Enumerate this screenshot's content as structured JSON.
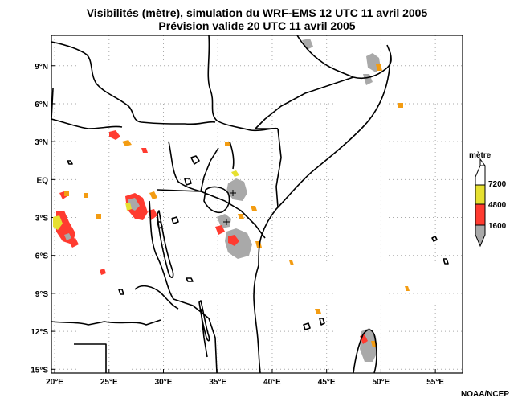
{
  "title_line1": "Visibilités (mètre), simulation du WRF-EMS 12 UTC 11 avril 2005",
  "title_line2": "Prévision valide 20 UTC 11 avril 2005",
  "credit": "NOAA/NCEP",
  "map": {
    "lon_range": [
      19.7,
      57.5
    ],
    "lat_range": [
      -15.3,
      11.4
    ],
    "lon_ticks": [
      {
        "value": 20,
        "label": "20°E"
      },
      {
        "value": 25,
        "label": "25°E"
      },
      {
        "value": 30,
        "label": "30°E"
      },
      {
        "value": 35,
        "label": "35°E"
      },
      {
        "value": 40,
        "label": "40°E"
      },
      {
        "value": 45,
        "label": "45°E"
      },
      {
        "value": 50,
        "label": "50°E"
      },
      {
        "value": 55,
        "label": "55°E"
      }
    ],
    "lat_ticks": [
      {
        "value": 9,
        "label": "9°N"
      },
      {
        "value": 6,
        "label": "6°N"
      },
      {
        "value": 3,
        "label": "3°N"
      },
      {
        "value": 0,
        "label": "EQ"
      },
      {
        "value": -3,
        "label": "3°S"
      },
      {
        "value": -6,
        "label": "6°S"
      },
      {
        "value": -9,
        "label": "9°S"
      },
      {
        "value": -12,
        "label": "12°S"
      },
      {
        "value": -15,
        "label": "15°S"
      }
    ],
    "grid": "dotted"
  },
  "legend": {
    "title": "mètre",
    "colors": [
      "#a9a9a9",
      "#ff3b30",
      "#e6e030",
      "#ffffff"
    ],
    "labels": [
      "1600",
      "4800",
      "7200"
    ]
  }
}
